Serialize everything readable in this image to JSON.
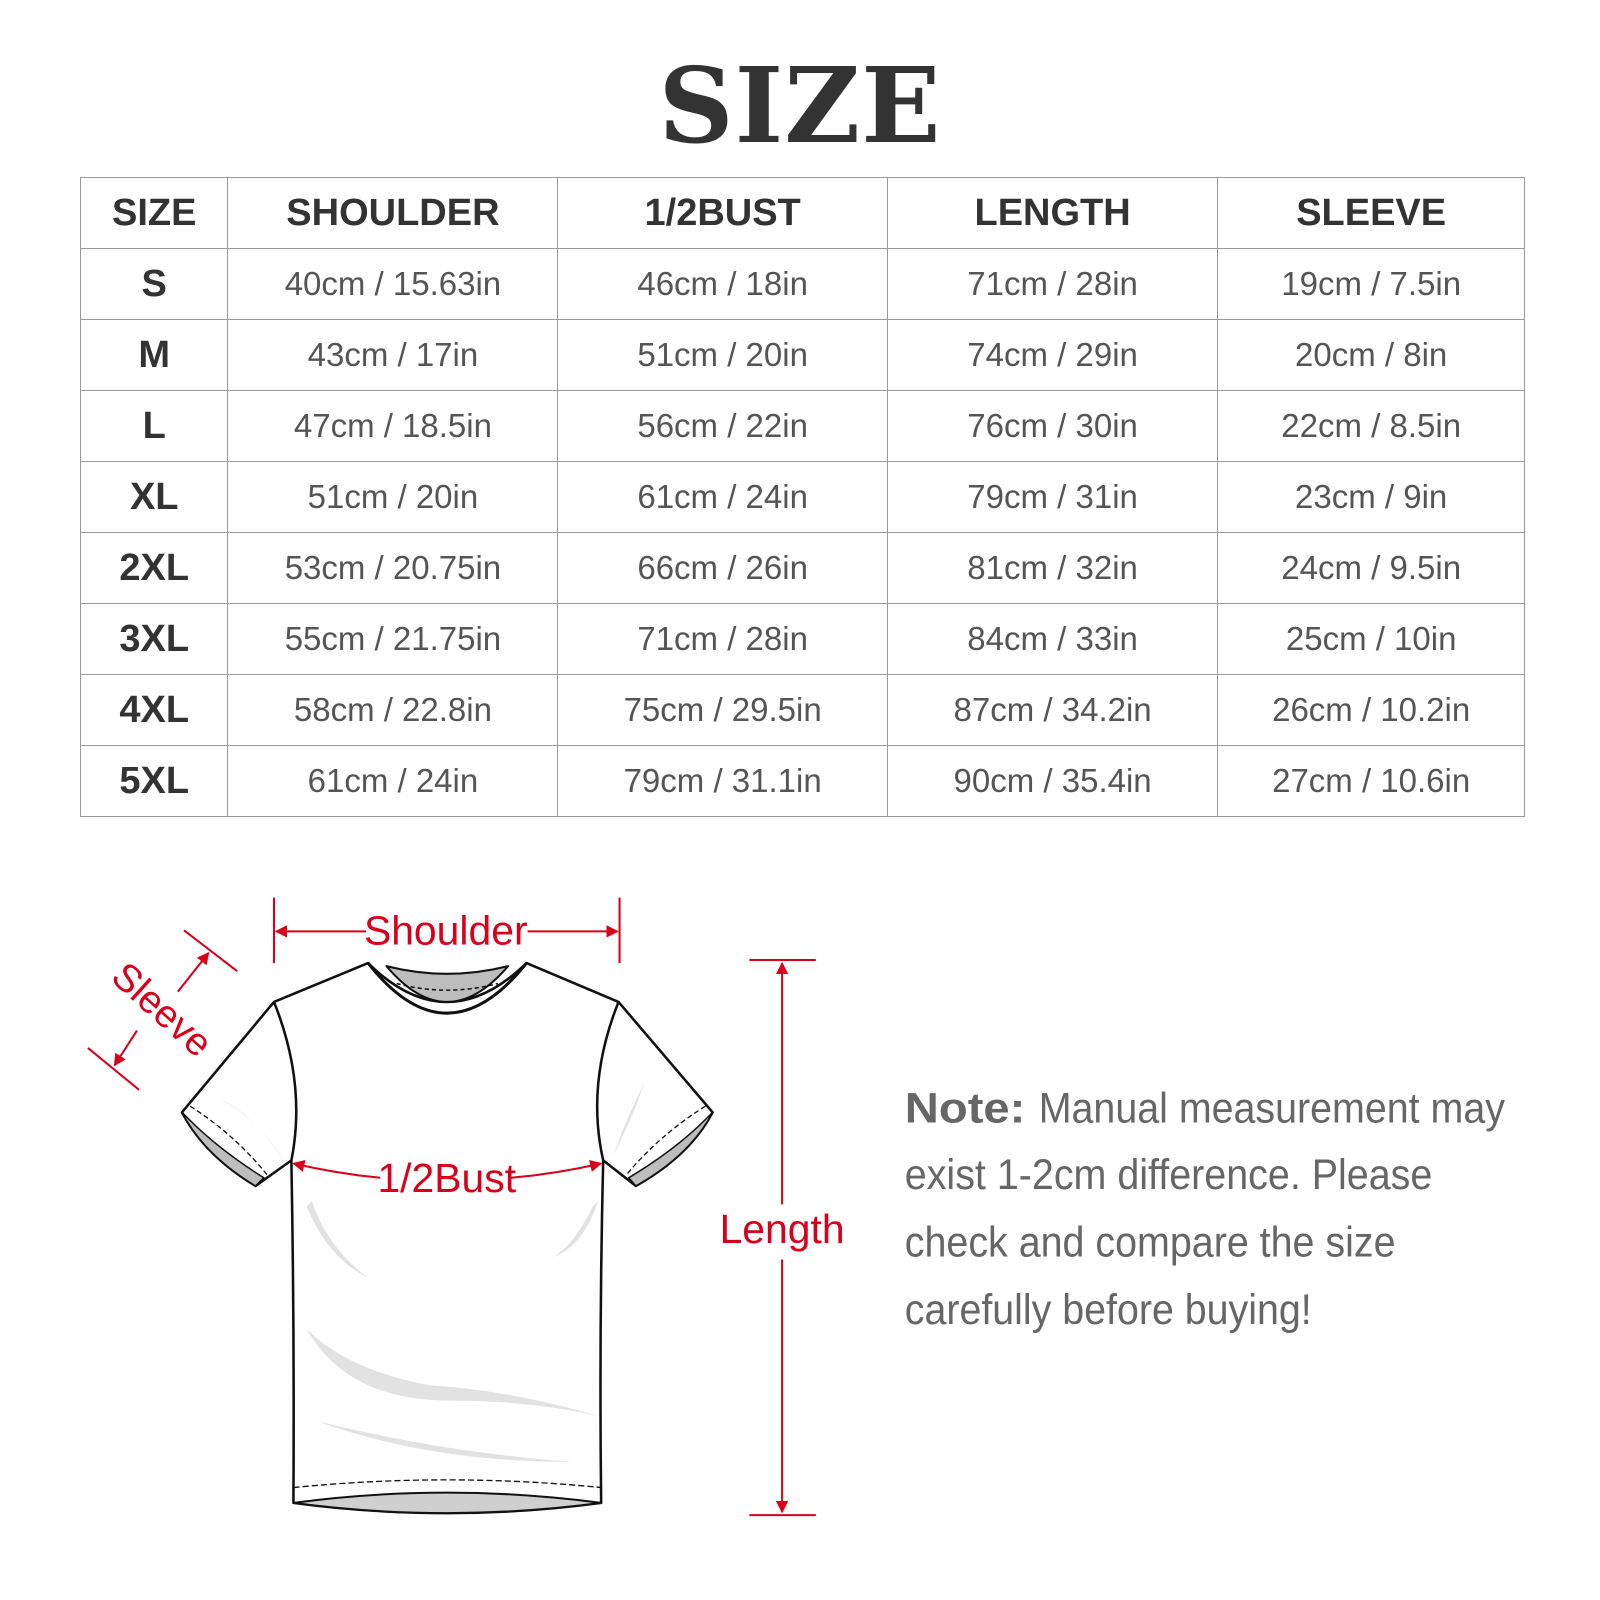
{
  "title": "SIZE",
  "table": {
    "headers": [
      "SIZE",
      "SHOULDER",
      "1/2BUST",
      "LENGTH",
      "SLEEVE"
    ],
    "rows": [
      [
        "S",
        "40cm / 15.63in",
        "46cm / 18in",
        "71cm / 28in",
        "19cm / 7.5in"
      ],
      [
        "M",
        "43cm / 17in",
        "51cm / 20in",
        "74cm / 29in",
        "20cm / 8in"
      ],
      [
        "L",
        "47cm / 18.5in",
        "56cm / 22in",
        "76cm / 30in",
        "22cm / 8.5in"
      ],
      [
        "XL",
        "51cm / 20in",
        "61cm / 24in",
        "79cm / 31in",
        "23cm / 9in"
      ],
      [
        "2XL",
        "53cm / 20.75in",
        "66cm / 26in",
        "81cm / 32in",
        "24cm / 9.5in"
      ],
      [
        "3XL",
        "55cm / 21.75in",
        "71cm / 28in",
        "84cm / 33in",
        "25cm / 10in"
      ],
      [
        "4XL",
        "58cm / 22.8in",
        "75cm / 29.5in",
        "87cm / 34.2in",
        "26cm / 10.2in"
      ],
      [
        "5XL",
        "61cm / 24in",
        "79cm / 31.1in",
        "90cm / 35.4in",
        "27cm / 10.6in"
      ]
    ]
  },
  "diagram": {
    "shoulder_label": "Shoulder",
    "sleeve_label": "Sleeve",
    "bust_label": "1/2Bust",
    "length_label": "Length",
    "accent_color": "#d9001b"
  },
  "note": {
    "label": "Note:",
    "lines": [
      "Manual measurement may",
      "exist 1-2cm difference. Please",
      "check and compare the size",
      "carefully before buying!"
    ]
  }
}
